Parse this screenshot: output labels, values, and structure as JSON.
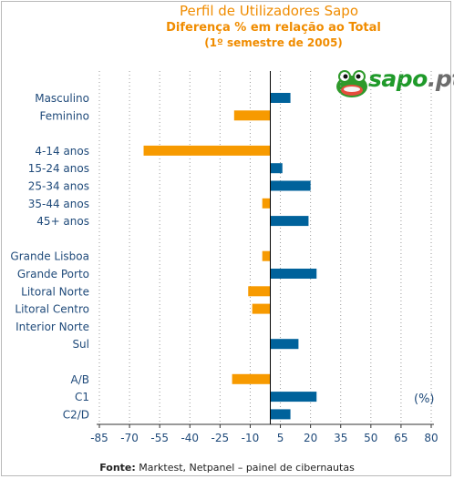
{
  "header": {
    "title": "Perfil de Utilizadores Sapo",
    "subtitle": "Diferença % em relação ao Total",
    "period": "(1º semestre de 2005)"
  },
  "logo": {
    "brand": "sapo",
    "suffix": ".pt"
  },
  "colors": {
    "positive": "#00629b",
    "negative": "#f79a00",
    "title": "#f08c00",
    "label": "#1f4a7a"
  },
  "chart_data": {
    "type": "bar",
    "orientation": "horizontal",
    "categories": [
      "Masculino",
      "Feminino",
      "4-14 anos",
      "15-24 anos",
      "25-34 anos",
      "35-44 anos",
      "45+ anos",
      "Grande Lisboa",
      "Grande Porto",
      "Litoral Norte",
      "Litoral Centro",
      "Interior Norte",
      "Sul",
      "A/B",
      "C1",
      "C2/D"
    ],
    "values": [
      10,
      -18,
      -63,
      6,
      20,
      -4,
      19,
      -4,
      23,
      -11,
      -9,
      0,
      14,
      -19,
      23,
      10
    ],
    "groups": [
      [
        0,
        1
      ],
      [
        2,
        3,
        4,
        5,
        6
      ],
      [
        7,
        8,
        9,
        10,
        11,
        12
      ],
      [
        13,
        14,
        15
      ]
    ],
    "xlim": [
      -85,
      80
    ],
    "x_ticks": [
      "-85",
      "-70",
      "-55",
      "-40",
      "-25",
      "-10",
      "5",
      "20",
      "35",
      "50",
      "65",
      "80"
    ],
    "unit_label": "(%)",
    "grid": "vertical dotted"
  },
  "footer": {
    "source_label": "Fonte:",
    "source_text": " Marktest, Netpanel – painel de cibernautas"
  }
}
